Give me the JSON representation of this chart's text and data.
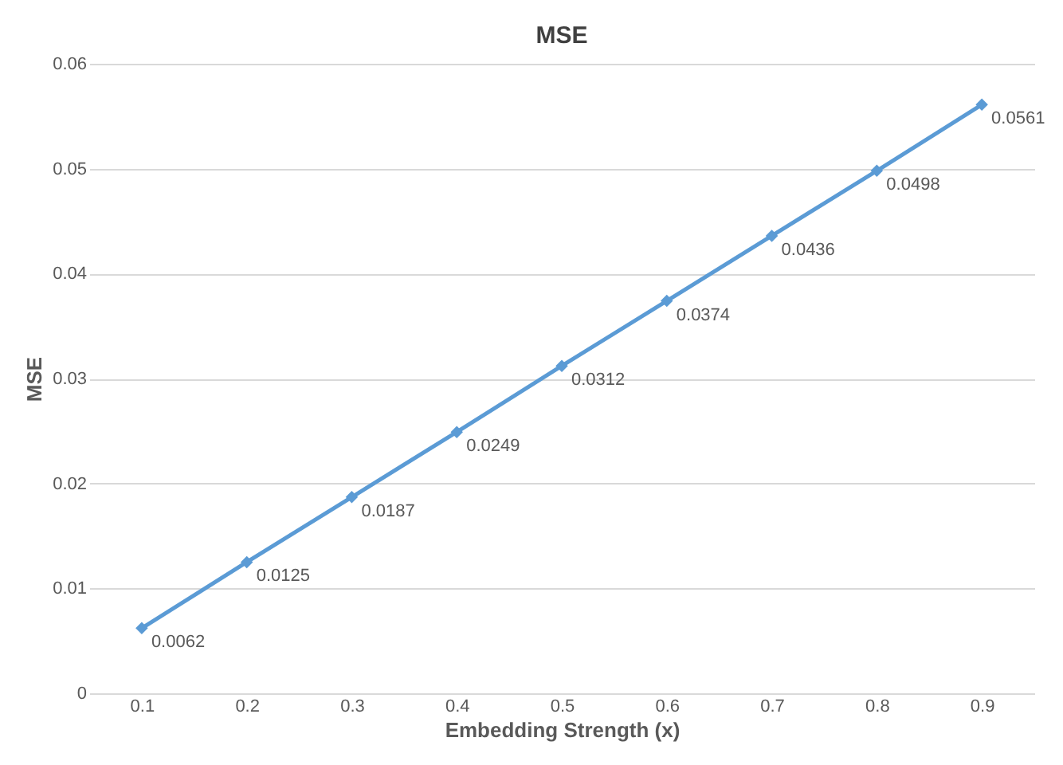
{
  "chart_data": {
    "type": "line",
    "title": "MSE",
    "xlabel": "Embedding Strength (x)",
    "ylabel": "MSE",
    "categories": [
      "0.1",
      "0.2",
      "0.3",
      "0.4",
      "0.5",
      "0.6",
      "0.7",
      "0.8",
      "0.9"
    ],
    "series": [
      {
        "color": "#5b9bd5",
        "values": [
          0.0062,
          0.0125,
          0.0187,
          0.0249,
          0.0312,
          0.0374,
          0.0436,
          0.0498,
          0.0561
        ]
      }
    ],
    "ylim": [
      0,
      0.06
    ],
    "yticks": [
      0,
      0.01,
      0.02,
      0.03,
      0.04,
      0.05,
      0.06
    ],
    "grid": "y",
    "marker": "diamond",
    "line_style": "solid",
    "data_labels": true
  }
}
